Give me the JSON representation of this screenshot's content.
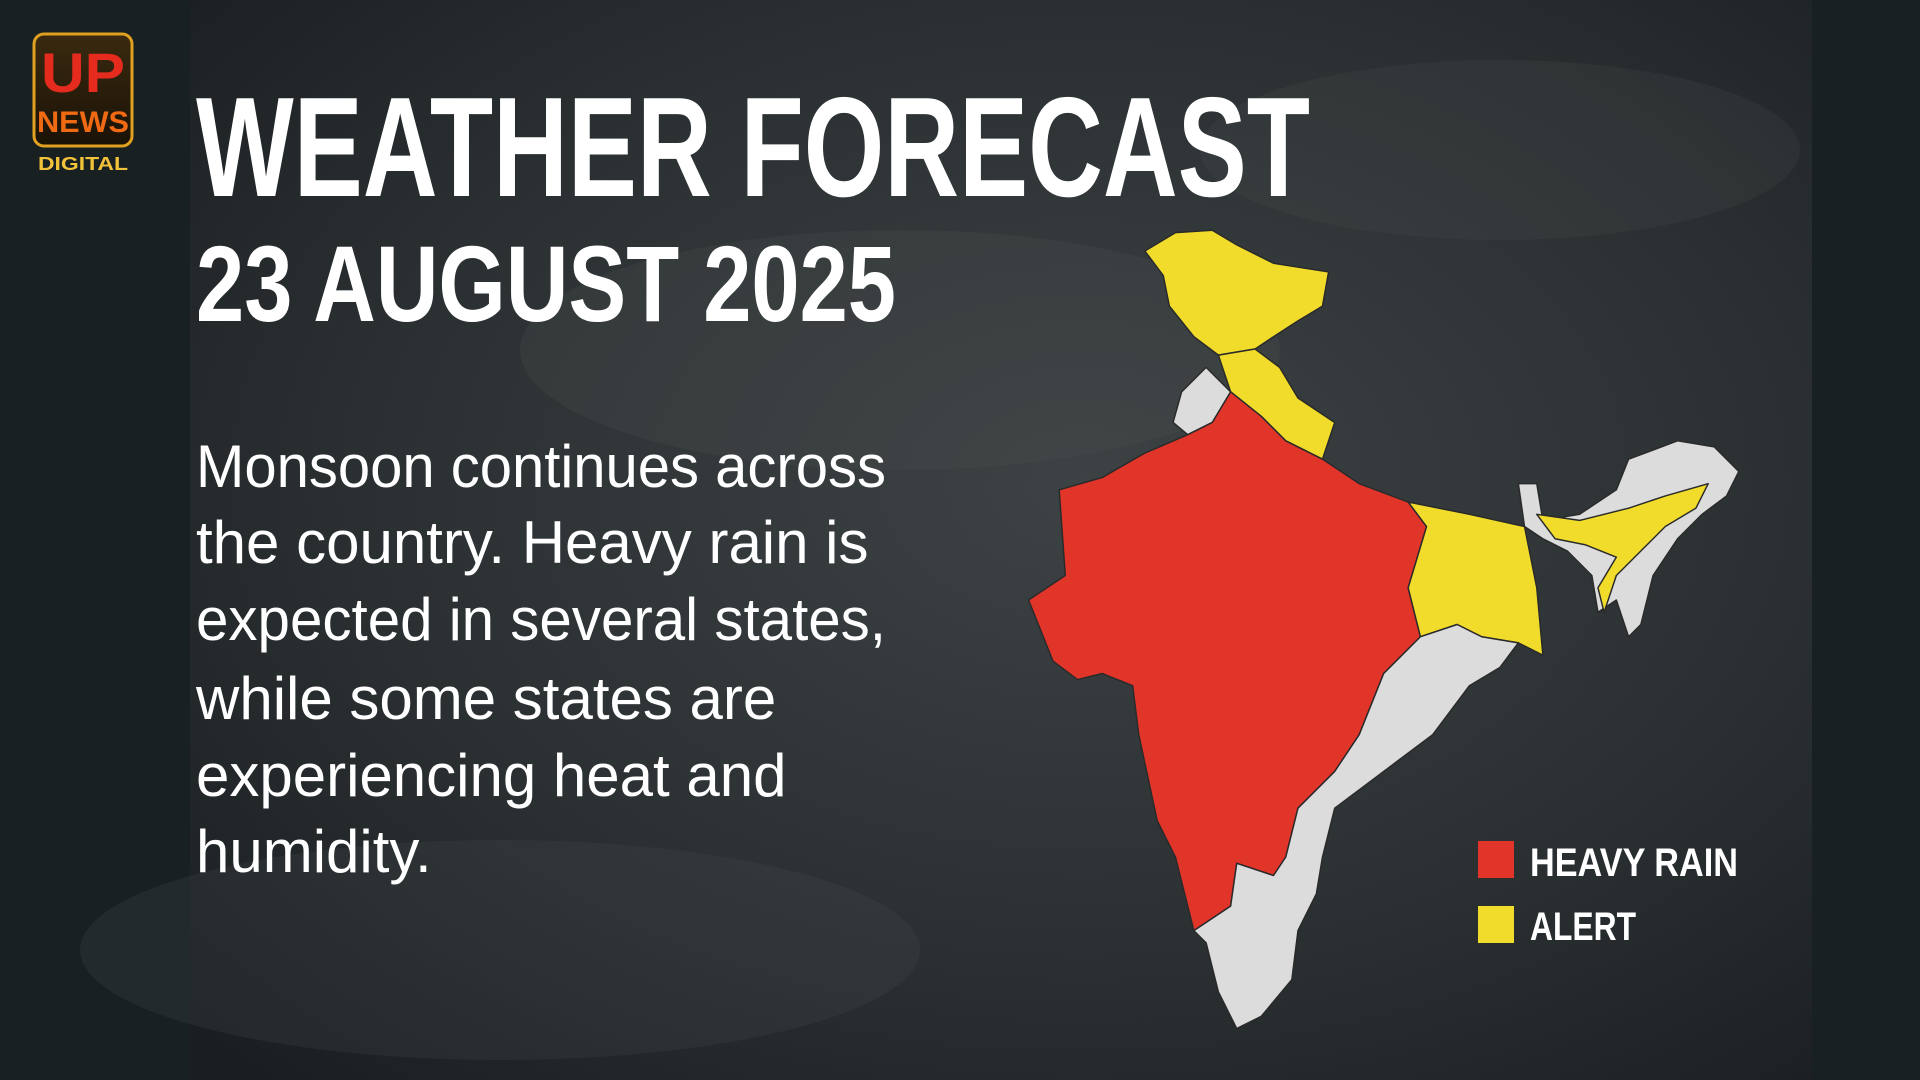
{
  "logo": {
    "line1": "UP",
    "line2": "NEWS",
    "line3": "DIGITAL"
  },
  "header": {
    "title": "WEATHER FORECAST",
    "date": "23 AUGUST 2025"
  },
  "description": {
    "lines": [
      "Monsoon continues across",
      "the country. Heavy rain is",
      "expected in several states,",
      "while some states are",
      "experiencing heat and",
      "humidity."
    ]
  },
  "legend": {
    "items": [
      {
        "label": "HEAVY RAIN",
        "color": "#e2352a"
      },
      {
        "label": "ALERT",
        "color": "#f1dc2b"
      }
    ]
  }
}
